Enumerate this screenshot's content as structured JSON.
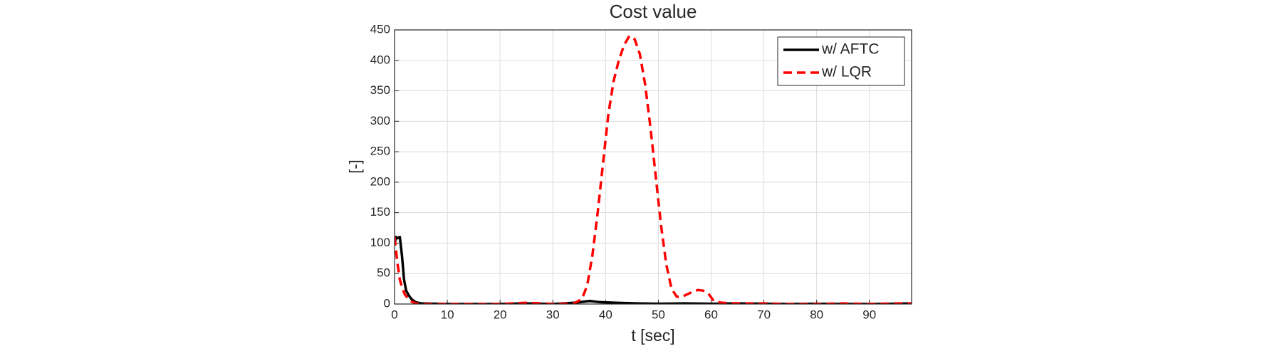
{
  "chart_data": {
    "type": "line",
    "title": "Cost value",
    "x_label": "t [sec]",
    "y_label": "[-]",
    "xlim": [
      0,
      98
    ],
    "ylim": [
      0,
      450
    ],
    "xticks": [
      0,
      10,
      20,
      30,
      40,
      50,
      60,
      70,
      80,
      90
    ],
    "yticks": [
      0,
      50,
      100,
      150,
      200,
      250,
      300,
      350,
      400,
      450
    ],
    "grid": true,
    "legend": "upper-right",
    "series": [
      {
        "name": "w/ AFTC",
        "color": "#000000",
        "dash": "solid",
        "x": [
          0,
          0.3,
          0.6,
          1,
          1.4,
          1.8,
          2.2,
          2.7,
          3.2,
          4,
          5,
          10,
          20,
          25,
          30,
          34,
          37,
          39,
          42,
          46,
          50,
          55,
          60,
          65,
          70,
          75,
          80,
          85,
          90,
          95,
          98
        ],
        "values": [
          98,
          110,
          108,
          110,
          80,
          40,
          22,
          14,
          8,
          3,
          1,
          0,
          0,
          1,
          0,
          2,
          5,
          3,
          2,
          1,
          0.5,
          1,
          0.5,
          1,
          0.5,
          0,
          0.5,
          0,
          0,
          0.5,
          1
        ]
      },
      {
        "name": "w/ LQR",
        "color": "#ff0000",
        "dash": "dashed",
        "x": [
          0,
          0.5,
          1,
          1.5,
          2,
          3,
          4,
          6,
          10,
          20,
          25,
          28,
          30,
          34,
          35.5,
          36.5,
          37.5,
          38.5,
          39.5,
          40.5,
          41.5,
          42.5,
          43.5,
          44.5,
          45.5,
          46.5,
          47.5,
          48.5,
          49.5,
          50.5,
          51.5,
          52.5,
          53.5,
          54.5,
          55.5,
          56.5,
          57.5,
          58.5,
          59.5,
          60.5,
          62,
          65,
          70,
          75,
          80,
          85,
          90,
          95,
          98
        ],
        "values": [
          110,
          70,
          40,
          25,
          15,
          5,
          1,
          0,
          0,
          0,
          2,
          1,
          0,
          1,
          8,
          30,
          80,
          150,
          230,
          310,
          365,
          400,
          425,
          440,
          435,
          410,
          360,
          290,
          210,
          130,
          65,
          25,
          12,
          12,
          16,
          20,
          23,
          22,
          17,
          5,
          2,
          1,
          1,
          0,
          0,
          1,
          0,
          1,
          1
        ]
      }
    ]
  }
}
